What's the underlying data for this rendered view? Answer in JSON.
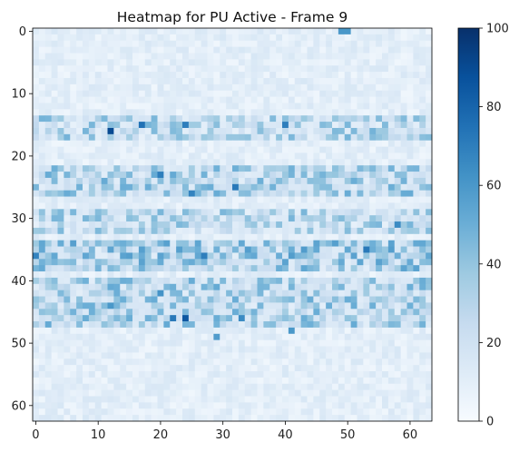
{
  "chart_data": {
    "type": "heatmap",
    "title": "Heatmap for PU Active - Frame 9",
    "xlabel": "",
    "ylabel": "",
    "rows": 63,
    "cols": 64,
    "xlim": [
      -0.5,
      63.5
    ],
    "ylim": [
      62.5,
      -0.5
    ],
    "xticks": [
      0,
      10,
      20,
      30,
      40,
      50,
      60
    ],
    "yticks": [
      0,
      10,
      20,
      30,
      40,
      50,
      60
    ],
    "colormap": "Blues",
    "colorbar": {
      "vmin": 0,
      "vmax": 100,
      "ticks": [
        0,
        20,
        40,
        60,
        80,
        100
      ]
    },
    "background_value": 10,
    "row_bands": [
      {
        "rows": [
          14,
          17
        ],
        "value": 28
      },
      {
        "rows": [
          22,
          26
        ],
        "value": 32
      },
      {
        "rows": [
          29,
          32
        ],
        "value": 28
      },
      {
        "rows": [
          34,
          38
        ],
        "value": 38
      },
      {
        "rows": [
          40,
          47
        ],
        "value": 32
      }
    ],
    "hot_cells": [
      {
        "row": 0,
        "col": 49,
        "value": 60
      },
      {
        "row": 0,
        "col": 50,
        "value": 60
      },
      {
        "row": 16,
        "col": 12,
        "value": 90
      },
      {
        "row": 15,
        "col": 17,
        "value": 75
      },
      {
        "row": 15,
        "col": 24,
        "value": 70
      },
      {
        "row": 15,
        "col": 40,
        "value": 70
      },
      {
        "row": 23,
        "col": 20,
        "value": 70
      },
      {
        "row": 25,
        "col": 32,
        "value": 72
      },
      {
        "row": 26,
        "col": 25,
        "value": 68
      },
      {
        "row": 31,
        "col": 58,
        "value": 65
      },
      {
        "row": 35,
        "col": 53,
        "value": 72
      },
      {
        "row": 36,
        "col": 0,
        "value": 68
      },
      {
        "row": 36,
        "col": 27,
        "value": 70
      },
      {
        "row": 42,
        "col": 20,
        "value": 62
      },
      {
        "row": 44,
        "col": 12,
        "value": 60
      },
      {
        "row": 46,
        "col": 24,
        "value": 85
      },
      {
        "row": 46,
        "col": 22,
        "value": 72
      },
      {
        "row": 46,
        "col": 33,
        "value": 65
      },
      {
        "row": 48,
        "col": 41,
        "value": 60
      },
      {
        "row": 49,
        "col": 29,
        "value": 58
      }
    ]
  }
}
